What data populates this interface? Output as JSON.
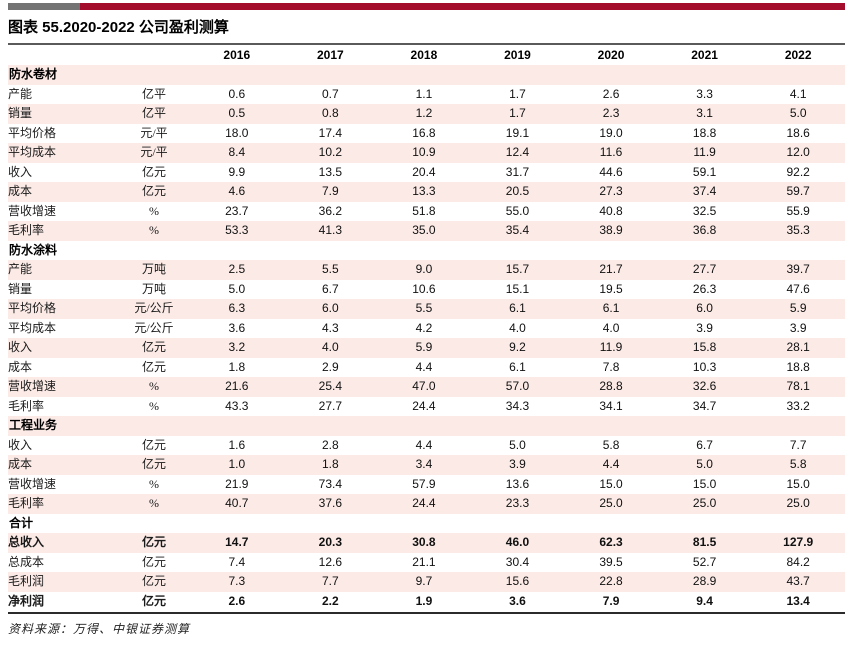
{
  "brand_bar": {
    "gray_color": "#747474",
    "red_color": "#A40E2C"
  },
  "title": "图表 55.2020-2022 公司盈利测算",
  "table": {
    "years": [
      "2016",
      "2017",
      "2018",
      "2019",
      "2020",
      "2021",
      "2022"
    ],
    "sections": [
      {
        "name": "防水卷材",
        "rows": [
          {
            "label": "产能",
            "unit": "亿平",
            "values": [
              "0.6",
              "0.7",
              "1.1",
              "1.7",
              "2.6",
              "3.3",
              "4.1"
            ]
          },
          {
            "label": "销量",
            "unit": "亿平",
            "values": [
              "0.5",
              "0.8",
              "1.2",
              "1.7",
              "2.3",
              "3.1",
              "5.0"
            ]
          },
          {
            "label": "平均价格",
            "unit": "元/平",
            "values": [
              "18.0",
              "17.4",
              "16.8",
              "19.1",
              "19.0",
              "18.8",
              "18.6"
            ]
          },
          {
            "label": "平均成本",
            "unit": "元/平",
            "values": [
              "8.4",
              "10.2",
              "10.9",
              "12.4",
              "11.6",
              "11.9",
              "12.0"
            ]
          },
          {
            "label": "收入",
            "unit": "亿元",
            "values": [
              "9.9",
              "13.5",
              "20.4",
              "31.7",
              "44.6",
              "59.1",
              "92.2"
            ]
          },
          {
            "label": "成本",
            "unit": "亿元",
            "values": [
              "4.6",
              "7.9",
              "13.3",
              "20.5",
              "27.3",
              "37.4",
              "59.7"
            ]
          },
          {
            "label": "营收增速",
            "unit": "%",
            "values": [
              "23.7",
              "36.2",
              "51.8",
              "55.0",
              "40.8",
              "32.5",
              "55.9"
            ]
          },
          {
            "label": "毛利率",
            "unit": "%",
            "values": [
              "53.3",
              "41.3",
              "35.0",
              "35.4",
              "38.9",
              "36.8",
              "35.3"
            ]
          }
        ]
      },
      {
        "name": "防水涂料",
        "rows": [
          {
            "label": "产能",
            "unit": "万吨",
            "values": [
              "2.5",
              "5.5",
              "9.0",
              "15.7",
              "21.7",
              "27.7",
              "39.7"
            ]
          },
          {
            "label": "销量",
            "unit": "万吨",
            "values": [
              "5.0",
              "6.7",
              "10.6",
              "15.1",
              "19.5",
              "26.3",
              "47.6"
            ]
          },
          {
            "label": "平均价格",
            "unit": "元/公斤",
            "values": [
              "6.3",
              "6.0",
              "5.5",
              "6.1",
              "6.1",
              "6.0",
              "5.9"
            ]
          },
          {
            "label": "平均成本",
            "unit": "元/公斤",
            "values": [
              "3.6",
              "4.3",
              "4.2",
              "4.0",
              "4.0",
              "3.9",
              "3.9"
            ]
          },
          {
            "label": "收入",
            "unit": "亿元",
            "values": [
              "3.2",
              "4.0",
              "5.9",
              "9.2",
              "11.9",
              "15.8",
              "28.1"
            ]
          },
          {
            "label": "成本",
            "unit": "亿元",
            "values": [
              "1.8",
              "2.9",
              "4.4",
              "6.1",
              "7.8",
              "10.3",
              "18.8"
            ]
          },
          {
            "label": "营收增速",
            "unit": "%",
            "values": [
              "21.6",
              "25.4",
              "47.0",
              "57.0",
              "28.8",
              "32.6",
              "78.1"
            ]
          },
          {
            "label": "毛利率",
            "unit": "%",
            "values": [
              "43.3",
              "27.7",
              "24.4",
              "34.3",
              "34.1",
              "34.7",
              "33.2"
            ]
          }
        ]
      },
      {
        "name": "工程业务",
        "rows": [
          {
            "label": "收入",
            "unit": "亿元",
            "values": [
              "1.6",
              "2.8",
              "4.4",
              "5.0",
              "5.8",
              "6.7",
              "7.7"
            ]
          },
          {
            "label": "成本",
            "unit": "亿元",
            "values": [
              "1.0",
              "1.8",
              "3.4",
              "3.9",
              "4.4",
              "5.0",
              "5.8"
            ]
          },
          {
            "label": "营收增速",
            "unit": "%",
            "values": [
              "21.9",
              "73.4",
              "57.9",
              "13.6",
              "15.0",
              "15.0",
              "15.0"
            ]
          },
          {
            "label": "毛利率",
            "unit": "%",
            "values": [
              "40.7",
              "37.6",
              "24.4",
              "23.3",
              "25.0",
              "25.0",
              "25.0"
            ]
          }
        ]
      },
      {
        "name": "合计",
        "rows": [
          {
            "label": "总收入",
            "unit": "亿元",
            "bold": true,
            "values": [
              "14.7",
              "20.3",
              "30.8",
              "46.0",
              "62.3",
              "81.5",
              "127.9"
            ]
          },
          {
            "label": "总成本",
            "unit": "亿元",
            "values": [
              "7.4",
              "12.6",
              "21.1",
              "30.4",
              "39.5",
              "52.7",
              "84.2"
            ]
          },
          {
            "label": "毛利润",
            "unit": "亿元",
            "values": [
              "7.3",
              "7.7",
              "9.7",
              "15.6",
              "22.8",
              "28.9",
              "43.7"
            ]
          },
          {
            "label": "净利润",
            "unit": "亿元",
            "bold": true,
            "values": [
              "2.6",
              "2.2",
              "1.9",
              "3.6",
              "7.9",
              "9.4",
              "13.4"
            ]
          }
        ]
      }
    ]
  },
  "footer": {
    "source": "资料来源：万得、中银证券测算"
  }
}
